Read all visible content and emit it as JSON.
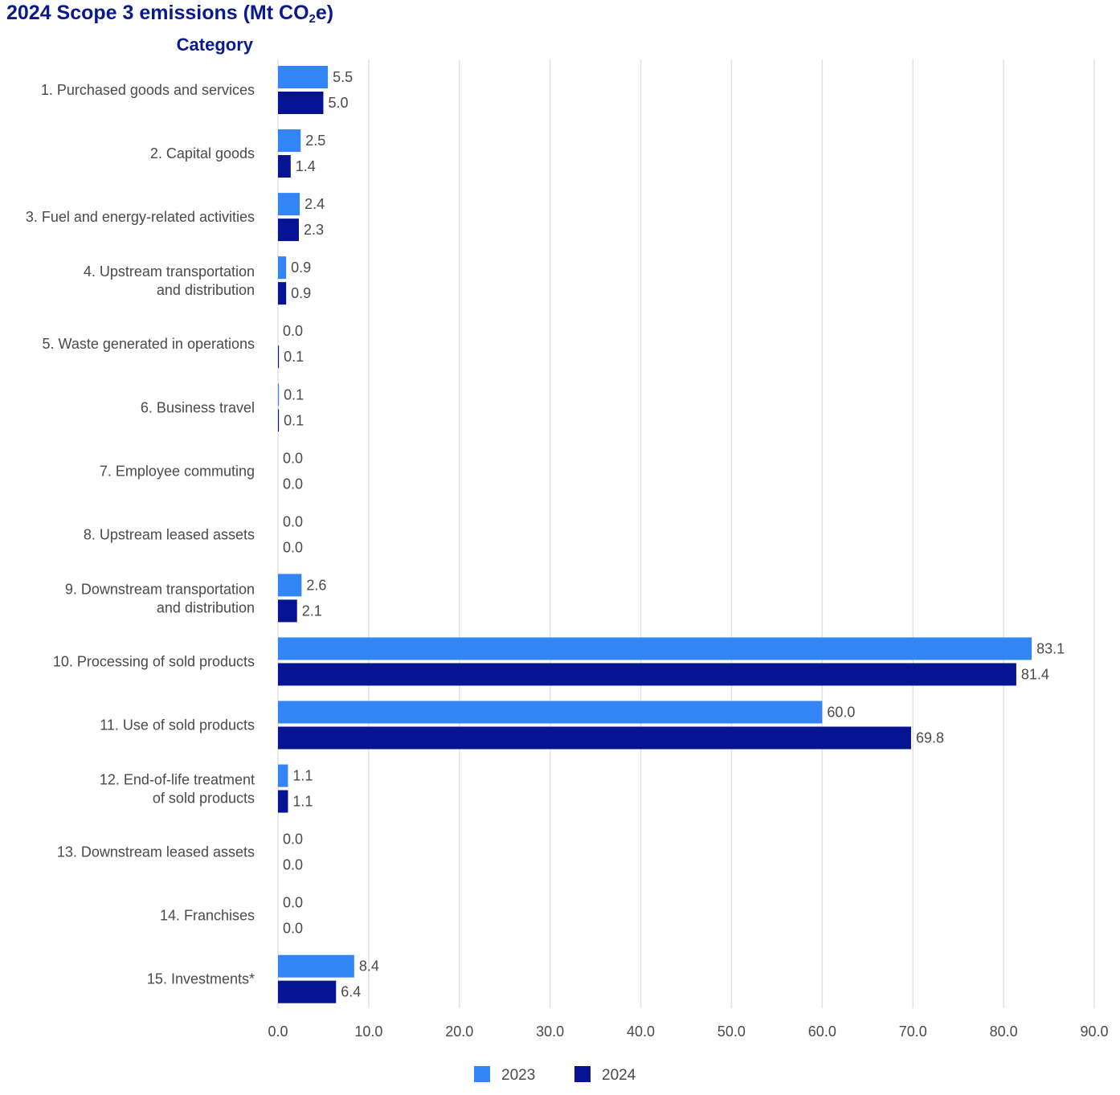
{
  "title_main": "2024 Scope 3 emissions (Mt CO",
  "title_sub": "2",
  "title_end": "e)",
  "chart_data": {
    "type": "bar",
    "orientation": "horizontal",
    "y_axis_heading": "Category",
    "categories": [
      [
        "1. Purchased goods and services"
      ],
      [
        "2. Capital goods"
      ],
      [
        "3. Fuel and energy-related activities"
      ],
      [
        "4. Upstream transportation",
        "and distribution"
      ],
      [
        "5. Waste generated in operations"
      ],
      [
        "6. Business travel"
      ],
      [
        "7. Employee commuting"
      ],
      [
        "8. Upstream leased assets"
      ],
      [
        "9. Downstream transportation",
        "and distribution"
      ],
      [
        "10. Processing of sold products"
      ],
      [
        "11. Use of sold products"
      ],
      [
        "12. End-of-life treatment",
        "of sold products"
      ],
      [
        "13. Downstream leased assets"
      ],
      [
        "14. Franchises"
      ],
      [
        "15. Investments*"
      ]
    ],
    "series": [
      {
        "name": "2023",
        "color": "#3384f4",
        "values": [
          5.5,
          2.5,
          2.4,
          0.9,
          0.0,
          0.1,
          0.0,
          0.0,
          2.6,
          83.1,
          60.0,
          1.1,
          0.0,
          0.0,
          8.4
        ],
        "labels": [
          "5.5",
          "2.5",
          "2.4",
          "0.9",
          "0.0",
          "0.1",
          "0.0",
          "0.0",
          "2.6",
          "83.1",
          "60.0",
          "1.1",
          "0.0",
          "0.0",
          "8.4"
        ]
      },
      {
        "name": "2024",
        "color": "#061393",
        "values": [
          5.0,
          1.4,
          2.3,
          0.9,
          0.1,
          0.1,
          0.0,
          0.0,
          2.1,
          81.4,
          69.8,
          1.1,
          0.0,
          0.0,
          6.4
        ],
        "labels": [
          "5.0",
          "1.4",
          "2.3",
          "0.9",
          "0.1",
          "0.1",
          "0.0",
          "0.0",
          "2.1",
          "81.4",
          "69.8",
          "1.1",
          "0.0",
          "0.0",
          "6.4"
        ]
      }
    ],
    "xlim": [
      0,
      90
    ],
    "x_ticks": [
      "0.0",
      "10.0",
      "20.0",
      "30.0",
      "40.0",
      "50.0",
      "60.0",
      "70.0",
      "80.0",
      "90.0"
    ],
    "grid": true,
    "legend_position": "bottom-center"
  }
}
